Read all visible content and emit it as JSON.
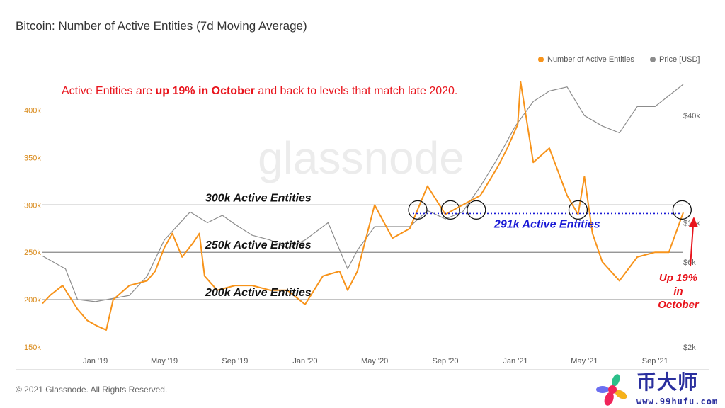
{
  "title": "Bitcoin: Number of Active Entities (7d Moving Average)",
  "copyright": "© 2021 Glassnode. All Rights Reserved.",
  "watermark": "glassnode",
  "headline": {
    "pre": "Active Entities are ",
    "bold": "up 19% in October",
    "post": " and back to levels that match late 2020."
  },
  "logo": {
    "cn": "币大师",
    "url": "www.99hufu.com",
    "brand": "glassnode"
  },
  "colors": {
    "entities": "#f7931a",
    "price": "#8c8c8c",
    "annotation_red": "#e8141c",
    "annotation_blue": "#1a1ad6"
  },
  "chart_data": {
    "type": "line",
    "title": "Bitcoin: Number of Active Entities (7d Moving Average)",
    "legend_placement": "top-right",
    "grid": false,
    "x_ticks": [
      "Jan '19",
      "May '19",
      "Sep '19",
      "Jan '20",
      "May '20",
      "Sep '20",
      "Jan '21",
      "May '21",
      "Sep '21"
    ],
    "x_tick_dates": [
      "2019-01",
      "2019-05",
      "2019-09",
      "2020-01",
      "2020-05",
      "2020-09",
      "2021-01",
      "2021-05",
      "2021-09"
    ],
    "x_range": [
      "2018-10",
      "2021-10-20"
    ],
    "y_left": {
      "ticks": [
        "150k",
        "200k",
        "250k",
        "300k",
        "350k",
        "400k"
      ],
      "tick_values": [
        150000,
        200000,
        250000,
        300000,
        350000,
        400000
      ],
      "range": [
        150000,
        464000
      ],
      "scale": "linear"
    },
    "y_right": {
      "ticks": [
        "$2k",
        "$6k",
        "$10k",
        "$40k"
      ],
      "tick_values": [
        2000,
        6000,
        10000,
        40000
      ],
      "range": [
        2000,
        94000
      ],
      "scale": "log"
    },
    "series": [
      {
        "name": "Number of Active Entities",
        "axis": "left",
        "x": [
          "2018-10-01",
          "2018-10-15",
          "2018-11-05",
          "2018-12-01",
          "2018-12-18",
          "2019-01-05",
          "2019-01-20",
          "2019-02-01",
          "2019-03-01",
          "2019-04-01",
          "2019-04-15",
          "2019-05-01",
          "2019-05-15",
          "2019-06-01",
          "2019-06-20",
          "2019-07-01",
          "2019-07-10",
          "2019-08-01",
          "2019-09-01",
          "2019-10-01",
          "2019-11-01",
          "2019-12-01",
          "2020-01-01",
          "2020-02-01",
          "2020-03-01",
          "2020-03-15",
          "2020-04-01",
          "2020-05-01",
          "2020-06-01",
          "2020-07-01",
          "2020-08-01",
          "2020-09-01",
          "2020-10-01",
          "2020-11-01",
          "2020-12-01",
          "2020-12-18",
          "2021-01-05",
          "2021-01-10",
          "2021-02-01",
          "2021-03-01",
          "2021-04-01",
          "2021-04-20",
          "2021-05-01",
          "2021-05-15",
          "2021-06-01",
          "2021-07-01",
          "2021-08-01",
          "2021-09-01",
          "2021-09-25",
          "2021-10-20"
        ],
        "values": [
          196000,
          205000,
          215000,
          190000,
          178000,
          172000,
          168000,
          200000,
          215000,
          220000,
          230000,
          255000,
          270000,
          245000,
          260000,
          270000,
          225000,
          210000,
          215000,
          215000,
          210000,
          210000,
          195000,
          225000,
          230000,
          210000,
          230000,
          300000,
          265000,
          275000,
          320000,
          290000,
          300000,
          310000,
          340000,
          360000,
          385000,
          430000,
          345000,
          360000,
          310000,
          290000,
          330000,
          270000,
          240000,
          220000,
          245000,
          250000,
          250000,
          292000
        ]
      },
      {
        "name": "Price [USD]",
        "axis": "right",
        "x": [
          "2018-10-01",
          "2018-11-10",
          "2018-12-01",
          "2019-01-01",
          "2019-03-01",
          "2019-04-01",
          "2019-05-01",
          "2019-06-15",
          "2019-07-15",
          "2019-08-10",
          "2019-09-01",
          "2019-10-01",
          "2019-11-01",
          "2019-12-01",
          "2020-01-01",
          "2020-02-10",
          "2020-03-15",
          "2020-04-01",
          "2020-05-01",
          "2020-06-01",
          "2020-07-01",
          "2020-08-01",
          "2020-09-01",
          "2020-10-01",
          "2020-11-01",
          "2020-12-01",
          "2021-01-01",
          "2021-02-01",
          "2021-03-01",
          "2021-04-01",
          "2021-05-01",
          "2021-06-01",
          "2021-07-01",
          "2021-08-01",
          "2021-09-01",
          "2021-10-20"
        ],
        "values": [
          6500,
          5500,
          3700,
          3600,
          3900,
          5000,
          8000,
          11500,
          10000,
          11000,
          9800,
          8500,
          8000,
          7200,
          8000,
          10000,
          5500,
          7000,
          9500,
          9500,
          9500,
          11700,
          10500,
          11500,
          16000,
          23000,
          35000,
          48000,
          55000,
          58000,
          40000,
          35000,
          32000,
          45000,
          45000,
          60000
        ]
      }
    ],
    "annotations": {
      "line_300k": "300k Active Entities",
      "line_250k": "250k Active Entities",
      "line_200k": "200k Active Entities",
      "line_291k": "291k Active Entities",
      "level_values": [
        300000,
        250000,
        200000,
        291000
      ],
      "callout": [
        "Up 19%",
        "in",
        "October"
      ],
      "circle_dates": [
        "2020-07-15",
        "2020-09-10",
        "2020-10-25",
        "2021-04-20",
        "2021-10-18"
      ]
    }
  }
}
